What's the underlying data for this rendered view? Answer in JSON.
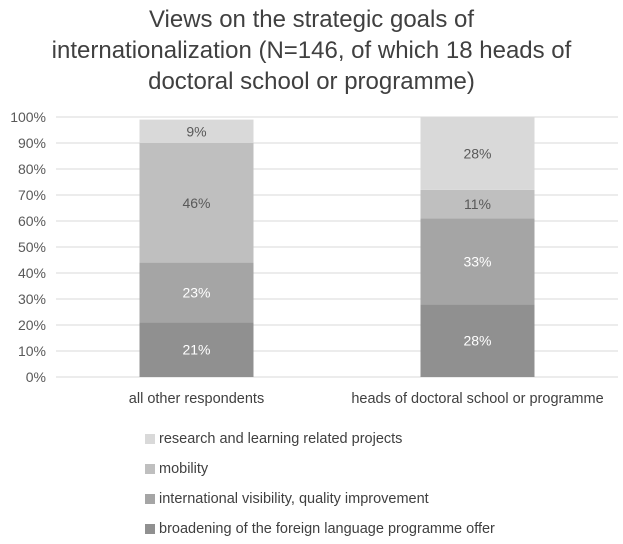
{
  "chart_data": {
    "type": "bar",
    "stacked": true,
    "title_lines": [
      "Views on the strategic goals of",
      "internationalization (N=146, of which 18 heads of",
      "doctoral school or programme)"
    ],
    "categories": [
      "all other respondents",
      "heads of doctoral school or programme"
    ],
    "y_ticks": [
      "0%",
      "10%",
      "20%",
      "30%",
      "40%",
      "50%",
      "60%",
      "70%",
      "80%",
      "90%",
      "100%"
    ],
    "ylim": [
      0,
      100
    ],
    "grid": true,
    "legend_position": "bottom",
    "series": [
      {
        "name": "broadening of the foreign language programme offer",
        "values": [
          21,
          28
        ],
        "labels": [
          "21%",
          "28%"
        ],
        "color": "#909090",
        "label_color": "#ffffff"
      },
      {
        "name": "international visibility, quality improvement",
        "values": [
          23,
          33
        ],
        "labels": [
          "23%",
          "33%"
        ],
        "color": "#a5a5a5",
        "label_color": "#ffffff"
      },
      {
        "name": "mobility",
        "values": [
          46,
          11
        ],
        "labels": [
          "46%",
          "11%"
        ],
        "color": "#bfbfbf",
        "label_color": "#595959"
      },
      {
        "name": "research and learning related projects",
        "values": [
          9,
          28
        ],
        "labels": [
          "9%",
          "28%"
        ],
        "color": "#d9d9d9",
        "label_color": "#595959"
      }
    ]
  }
}
